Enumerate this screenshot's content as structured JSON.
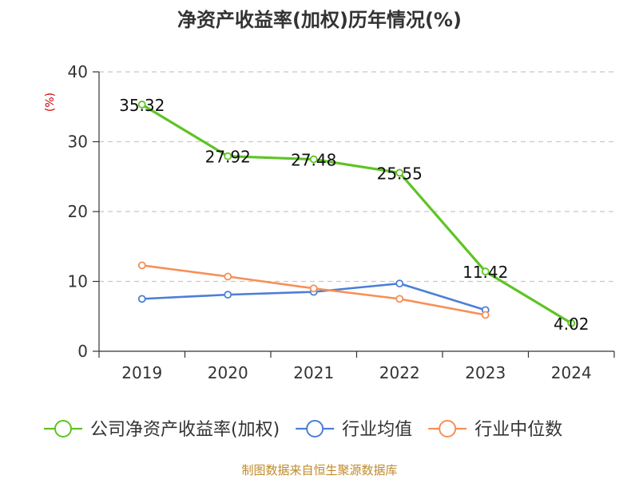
{
  "chart_data": {
    "type": "line",
    "title": "净资产收益率(加权)历年情况(%)",
    "unit_label": "(%)",
    "categories": [
      "2019",
      "2020",
      "2021",
      "2022",
      "2023",
      "2024"
    ],
    "ylim": [
      0,
      40
    ],
    "yticks": [
      0,
      10,
      20,
      30,
      40
    ],
    "grid": true,
    "series": [
      {
        "name": "公司净资产收益率(加权)",
        "color": "#5ec424",
        "values": [
          35.32,
          27.92,
          27.48,
          25.55,
          11.42,
          4.02
        ],
        "labels": [
          "35.32",
          "27.92",
          "27.48",
          "25.55",
          "11.42",
          "4.02"
        ]
      },
      {
        "name": "行业均值",
        "color": "#4a7fd6",
        "values": [
          7.5,
          8.1,
          8.5,
          9.7,
          5.9,
          null
        ]
      },
      {
        "name": "行业中位数",
        "color": "#f78f55",
        "values": [
          12.3,
          10.7,
          9.0,
          7.5,
          5.2,
          null
        ]
      }
    ],
    "legend_position": "bottom",
    "source": "制图数据来自恒生聚源数据库"
  }
}
